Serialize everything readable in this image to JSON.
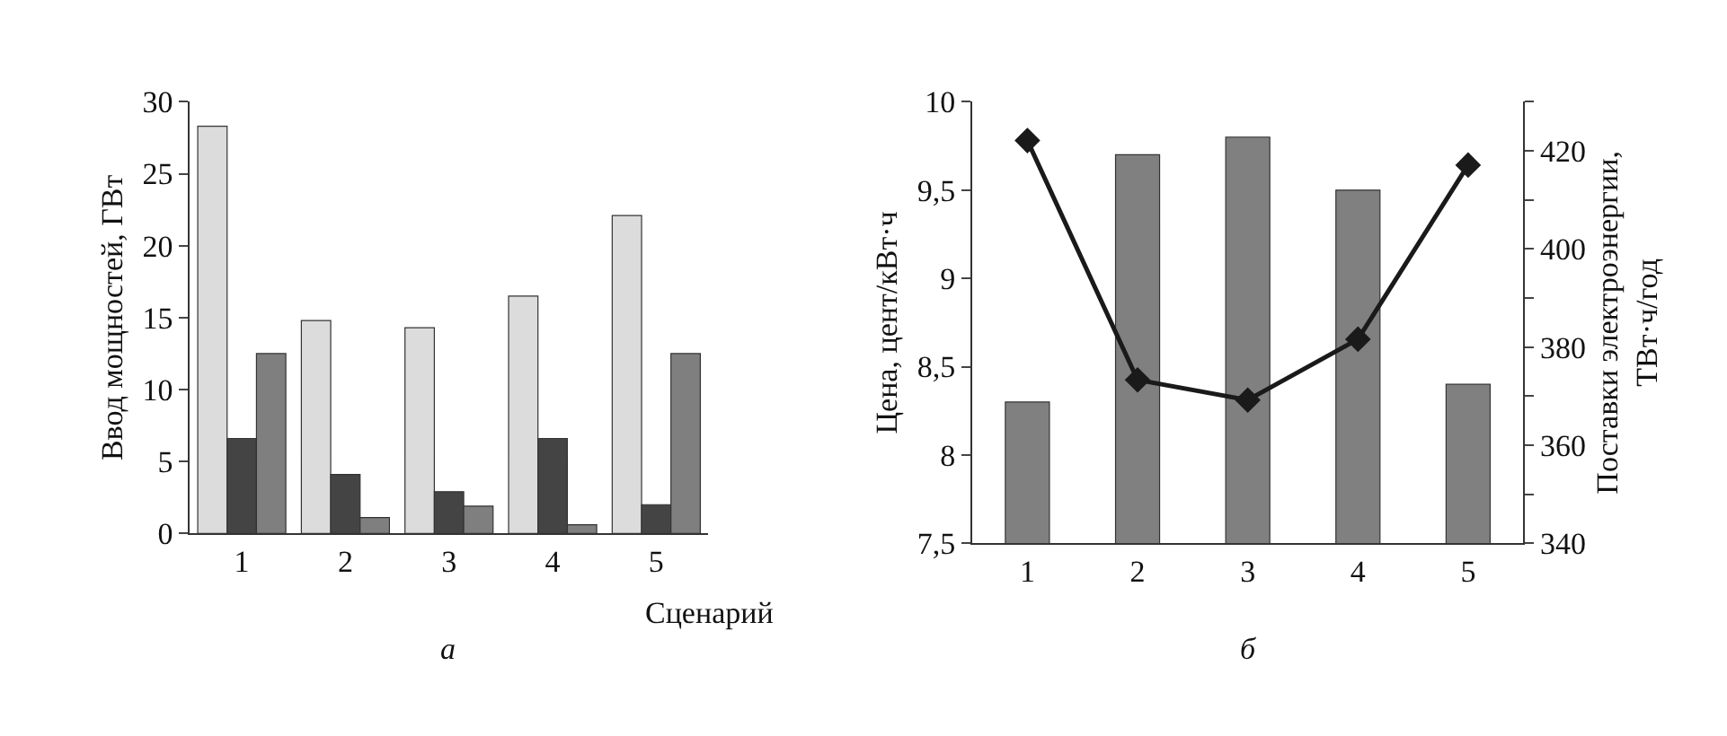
{
  "chart_data": [
    {
      "type": "bar",
      "categories": [
        "1",
        "2",
        "3",
        "4",
        "5"
      ],
      "ylabel": "Ввод мощностей, ГВт",
      "xlabel": "Сценарий",
      "annotations": [
        "а"
      ],
      "ylim": [
        0,
        30
      ],
      "yticks": [
        0,
        5,
        10,
        15,
        20,
        25,
        30
      ],
      "series": [
        {
          "color": "#dcdcdc",
          "values": [
            28.3,
            14.8,
            14.3,
            16.5,
            22.1
          ]
        },
        {
          "color": "#444444",
          "values": [
            6.6,
            4.1,
            2.9,
            6.6,
            2.0
          ]
        },
        {
          "color": "#7f7f7f",
          "values": [
            12.5,
            1.1,
            1.9,
            0.6,
            12.5
          ]
        }
      ]
    },
    {
      "type": "bar",
      "categories": [
        "1",
        "2",
        "3",
        "4",
        "5"
      ],
      "ylabel": "Цена, цент/кВт·ч",
      "y2label": "Поставки электроэнергии,\nТВт·ч/год",
      "annotations": [
        "б"
      ],
      "ylim": [
        7.5,
        10
      ],
      "yticks": [
        {
          "value": 7.5,
          "label": "7,5"
        },
        8,
        {
          "value": 8.5,
          "label": "8,5"
        },
        9,
        {
          "value": 9.5,
          "label": "9,5"
        },
        10
      ],
      "y2lim": [
        340,
        430
      ],
      "y2ticks": [
        340,
        {
          "value": 350,
          "label": null
        },
        360,
        {
          "value": 370,
          "label": null
        },
        380,
        {
          "value": 390,
          "label": null
        },
        400,
        {
          "value": 410,
          "label": null
        },
        420,
        {
          "value": 430,
          "label": null
        }
      ],
      "series": [
        {
          "color": "#808080",
          "values": [
            8.3,
            9.7,
            9.8,
            9.5,
            8.4
          ]
        },
        {
          "type": "line",
          "axis": "y2",
          "color": "#1a1a1a",
          "marker": "diamond",
          "line_style": "solid",
          "values": [
            422.1,
            373.3,
            369.2,
            381.6,
            417.1
          ]
        }
      ]
    }
  ]
}
